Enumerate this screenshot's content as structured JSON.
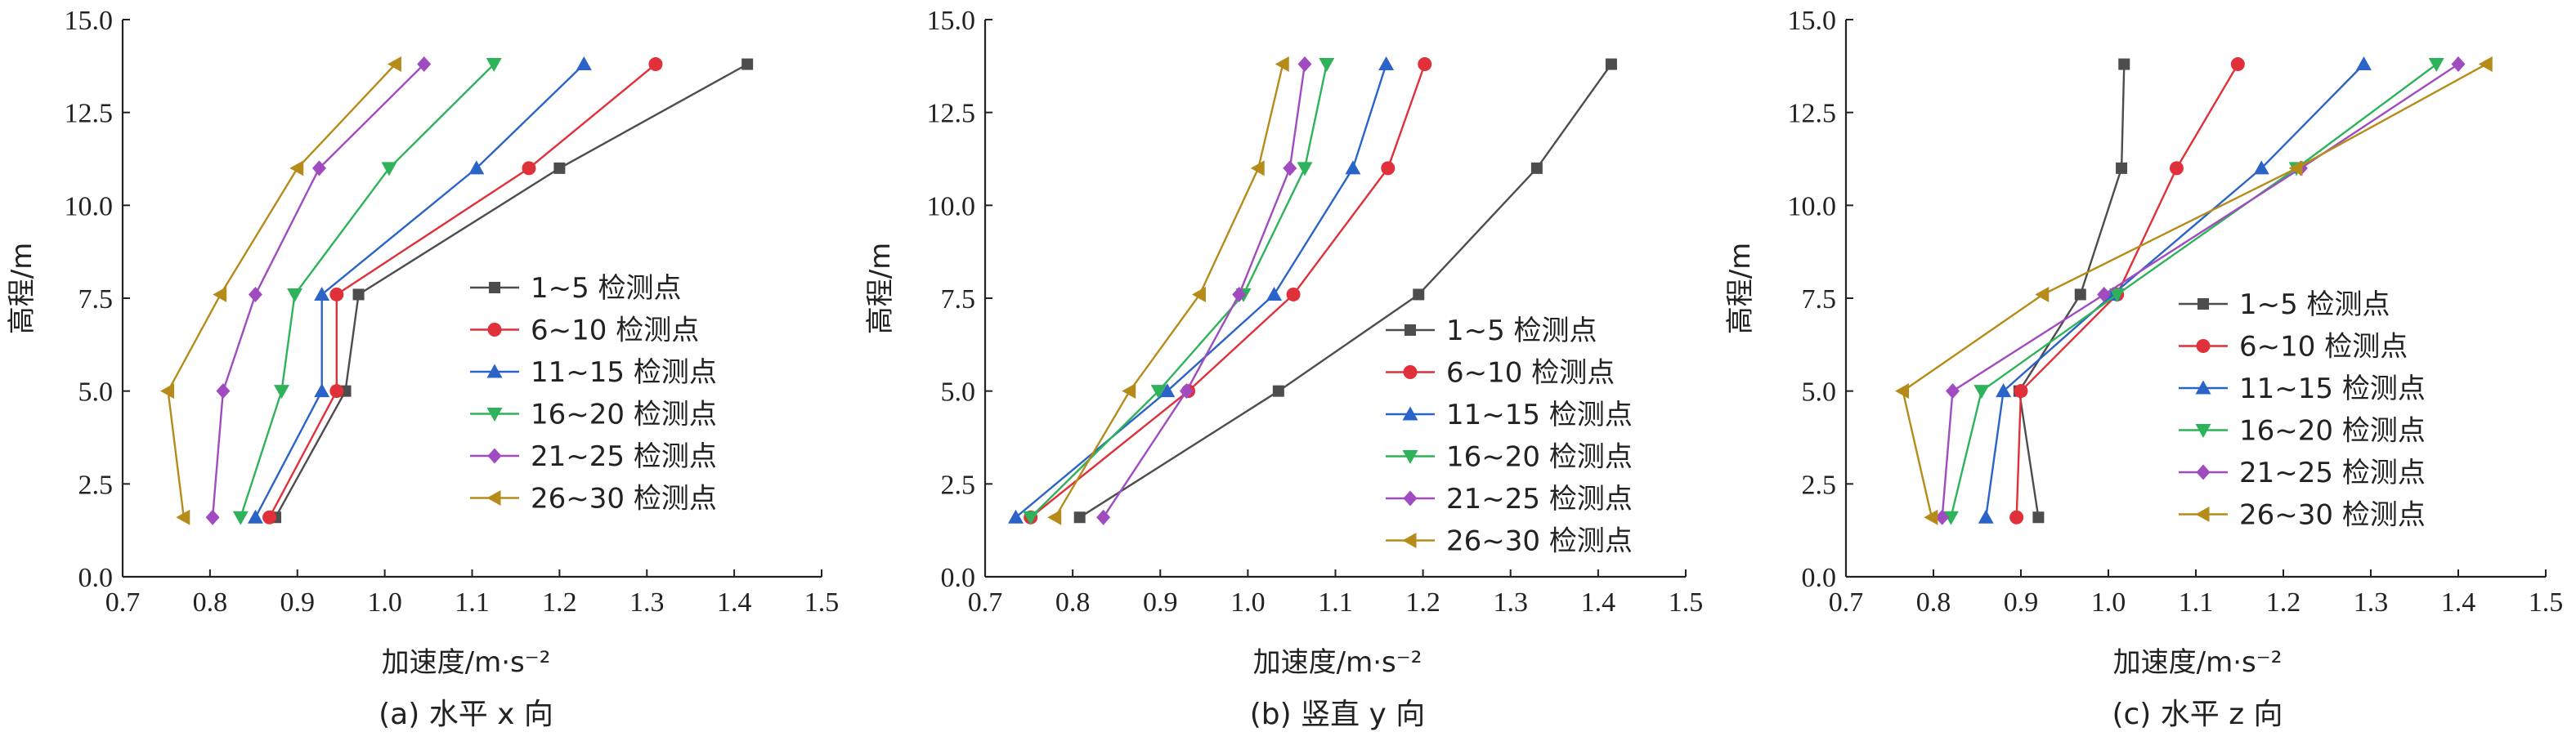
{
  "chart_data": [
    {
      "type": "line",
      "caption": "(a) 水平 x 向",
      "xlabel": "加速度/m·s⁻²",
      "ylabel": "高程/m",
      "xlim": [
        0.7,
        1.5
      ],
      "ylim": [
        0.0,
        15.0
      ],
      "xticks": [
        "0.7",
        "0.8",
        "0.9",
        "1.0",
        "1.1",
        "1.2",
        "1.3",
        "1.4",
        "1.5"
      ],
      "yticks": [
        "0.0",
        "2.5",
        "5.0",
        "7.5",
        "10.0",
        "12.5",
        "15.0"
      ],
      "legend_position": "right",
      "series": [
        {
          "name": "1~5 检测点",
          "color": "#4d4d4d",
          "marker": "square",
          "x": [
            0.875,
            0.955,
            0.97,
            1.2,
            1.415
          ],
          "y": [
            1.6,
            5.0,
            7.6,
            11.0,
            13.8
          ]
        },
        {
          "name": "6~10 检测点",
          "color": "#e0303a",
          "marker": "circle",
          "x": [
            0.868,
            0.945,
            0.945,
            1.165,
            1.31
          ],
          "y": [
            1.6,
            5.0,
            7.6,
            11.0,
            13.8
          ]
        },
        {
          "name": "11~15 检测点",
          "color": "#2b64c8",
          "marker": "triangle-up",
          "x": [
            0.852,
            0.928,
            0.928,
            1.105,
            1.228
          ],
          "y": [
            1.6,
            5.0,
            7.6,
            11.0,
            13.8
          ]
        },
        {
          "name": "16~20 检测点",
          "color": "#2eb35a",
          "marker": "triangle-down",
          "x": [
            0.835,
            0.882,
            0.897,
            1.005,
            1.125
          ],
          "y": [
            1.6,
            5.0,
            7.6,
            11.0,
            13.8
          ]
        },
        {
          "name": "21~25 检测点",
          "color": "#a04cc0",
          "marker": "diamond",
          "x": [
            0.803,
            0.815,
            0.852,
            0.925,
            1.045
          ],
          "y": [
            1.6,
            5.0,
            7.6,
            11.0,
            13.8
          ]
        },
        {
          "name": "26~30 检测点",
          "color": "#b58c1a",
          "marker": "triangle-left",
          "x": [
            0.77,
            0.752,
            0.812,
            0.9,
            1.012
          ],
          "y": [
            1.6,
            5.0,
            7.6,
            11.0,
            13.8
          ]
        }
      ]
    },
    {
      "type": "line",
      "caption": "(b) 竖直 y 向",
      "xlabel": "加速度/m·s⁻²",
      "ylabel": "高程/m",
      "xlim": [
        0.7,
        1.5
      ],
      "ylim": [
        0.0,
        15.0
      ],
      "xticks": [
        "0.7",
        "0.8",
        "0.9",
        "1.0",
        "1.1",
        "1.2",
        "1.3",
        "1.4",
        "1.5"
      ],
      "yticks": [
        "0.0",
        "2.5",
        "5.0",
        "7.5",
        "10.0",
        "12.5",
        "15.0"
      ],
      "legend_position": "bottom-right",
      "series": [
        {
          "name": "1~5 检测点",
          "color": "#4d4d4d",
          "marker": "square",
          "x": [
            0.808,
            1.035,
            1.195,
            1.33,
            1.415
          ],
          "y": [
            1.6,
            5.0,
            7.6,
            11.0,
            13.8
          ]
        },
        {
          "name": "6~10 检测点",
          "color": "#e0303a",
          "marker": "circle",
          "x": [
            0.752,
            0.932,
            1.052,
            1.16,
            1.202
          ],
          "y": [
            1.6,
            5.0,
            7.6,
            11.0,
            13.8
          ]
        },
        {
          "name": "11~15 检测点",
          "color": "#2b64c8",
          "marker": "triangle-up",
          "x": [
            0.735,
            0.908,
            1.03,
            1.12,
            1.158
          ],
          "y": [
            1.6,
            5.0,
            7.6,
            11.0,
            13.8
          ]
        },
        {
          "name": "16~20 检测点",
          "color": "#2eb35a",
          "marker": "triangle-down",
          "x": [
            0.752,
            0.898,
            0.995,
            1.065,
            1.09
          ],
          "y": [
            1.6,
            5.0,
            7.6,
            11.0,
            13.8
          ]
        },
        {
          "name": "21~25 检测点",
          "color": "#a04cc0",
          "marker": "diamond",
          "x": [
            0.835,
            0.93,
            0.99,
            1.048,
            1.065
          ],
          "y": [
            1.6,
            5.0,
            7.6,
            11.0,
            13.8
          ]
        },
        {
          "name": "26~30 检测点",
          "color": "#b58c1a",
          "marker": "triangle-left",
          "x": [
            0.78,
            0.865,
            0.945,
            1.012,
            1.04
          ],
          "y": [
            1.6,
            5.0,
            7.6,
            11.0,
            13.8
          ]
        }
      ]
    },
    {
      "type": "line",
      "caption": "(c) 水平 z 向",
      "xlabel": "加速度/m·s⁻²",
      "ylabel": "高程/m",
      "xlim": [
        0.7,
        1.5
      ],
      "ylim": [
        0.0,
        15.0
      ],
      "xticks": [
        "0.7",
        "0.8",
        "0.9",
        "1.0",
        "1.1",
        "1.2",
        "1.3",
        "1.4",
        "1.5"
      ],
      "yticks": [
        "0.0",
        "2.5",
        "5.0",
        "7.5",
        "10.0",
        "12.5",
        "15.0"
      ],
      "legend_position": "bottom-right",
      "series": [
        {
          "name": "1~5 检测点",
          "color": "#4d4d4d",
          "marker": "square",
          "x": [
            0.92,
            0.898,
            0.968,
            1.015,
            1.018
          ],
          "y": [
            1.6,
            5.0,
            7.6,
            11.0,
            13.8
          ]
        },
        {
          "name": "6~10 检测点",
          "color": "#e0303a",
          "marker": "circle",
          "x": [
            0.895,
            0.9,
            1.01,
            1.078,
            1.148
          ],
          "y": [
            1.6,
            5.0,
            7.6,
            11.0,
            13.8
          ]
        },
        {
          "name": "11~15 检测点",
          "color": "#2b64c8",
          "marker": "triangle-up",
          "x": [
            0.86,
            0.88,
            1.005,
            1.175,
            1.292
          ],
          "y": [
            1.6,
            5.0,
            7.6,
            11.0,
            13.8
          ]
        },
        {
          "name": "16~20 检测点",
          "color": "#2eb35a",
          "marker": "triangle-down",
          "x": [
            0.82,
            0.855,
            1.01,
            1.215,
            1.375
          ],
          "y": [
            1.6,
            5.0,
            7.6,
            11.0,
            13.8
          ]
        },
        {
          "name": "21~25 检测点",
          "color": "#a04cc0",
          "marker": "diamond",
          "x": [
            0.81,
            0.822,
            0.995,
            1.22,
            1.4
          ],
          "y": [
            1.6,
            5.0,
            7.6,
            11.0,
            13.8
          ]
        },
        {
          "name": "26~30 检测点",
          "color": "#b58c1a",
          "marker": "triangle-left",
          "x": [
            0.798,
            0.765,
            0.925,
            1.215,
            1.432
          ],
          "y": [
            1.6,
            5.0,
            7.6,
            11.0,
            13.8
          ]
        }
      ]
    }
  ]
}
